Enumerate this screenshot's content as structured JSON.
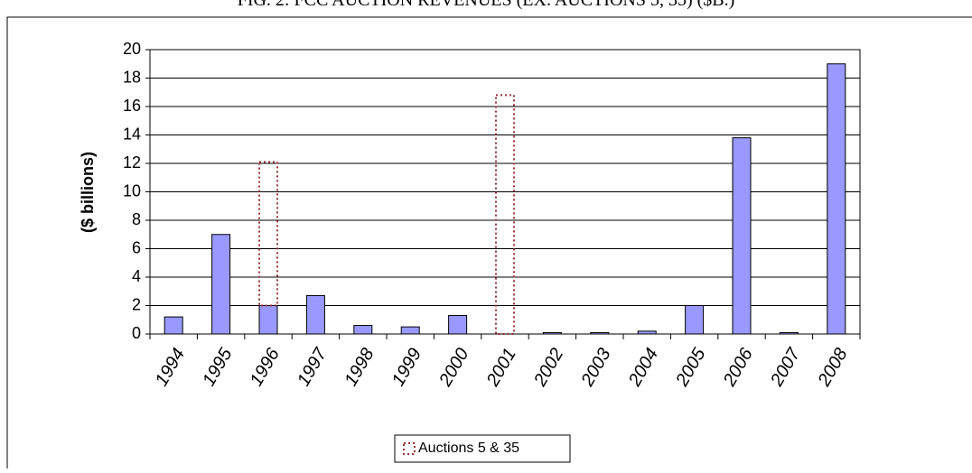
{
  "chart_data": {
    "type": "bar",
    "stacked": true,
    "title": "FIG. 2: FCC AUCTION REVENUES (EX. AUCTIONS 5, 35) ($B.)",
    "y_label": "($ billions)",
    "categories": [
      "1994",
      "1995",
      "1996",
      "1997",
      "1998",
      "1999",
      "2000",
      "2001",
      "2002",
      "2003",
      "2004",
      "2005",
      "2006",
      "2007",
      "2008"
    ],
    "series": [
      {
        "color": "#9999ff",
        "values": [
          1.2,
          7.0,
          2.0,
          2.7,
          0.6,
          0.5,
          1.3,
          0,
          0.1,
          0.1,
          0.2,
          2.0,
          13.8,
          0.1,
          19.0
        ]
      },
      {
        "name": "Auctions 5 & 35",
        "color": "#993333",
        "style": "dotted",
        "values": [
          null,
          null,
          10.1,
          null,
          null,
          null,
          null,
          16.8,
          null,
          null,
          null,
          null,
          null,
          null,
          null
        ]
      }
    ],
    "ylim": [
      0,
      20
    ],
    "yticks": [
      0,
      2,
      4,
      6,
      8,
      10,
      12,
      14,
      16,
      18,
      20
    ],
    "grid": true,
    "legend": "bottom"
  }
}
